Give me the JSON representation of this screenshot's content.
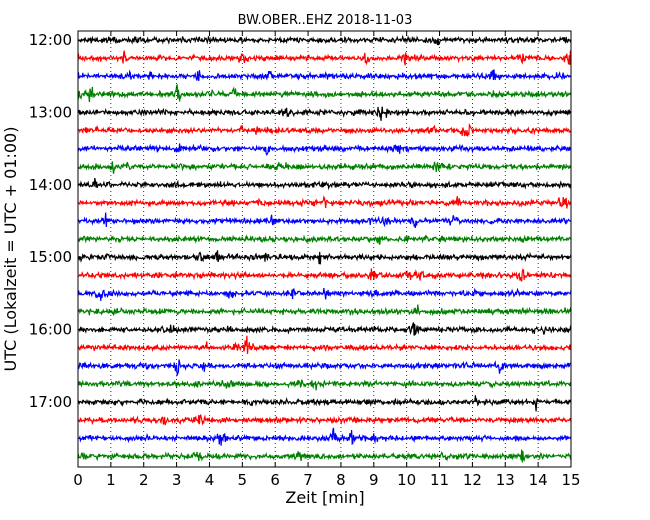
{
  "chart_data": {
    "type": "line",
    "title": "BW.OBER..EHZ 2018-11-03",
    "xlabel": "Zeit  [min]",
    "ylabel": "UTC (Lokalzeit = UTC + 01:00)",
    "xlim": [
      0,
      15
    ],
    "x_ticks": [
      "0",
      "1",
      "2",
      "3",
      "4",
      "5",
      "6",
      "7",
      "8",
      "9",
      "10",
      "11",
      "12",
      "13",
      "14",
      "15"
    ],
    "y_ticks": [
      "12:00",
      "13:00",
      "14:00",
      "15:00",
      "16:00",
      "17:00"
    ],
    "trace_interval_minutes": 15,
    "start_time": "12:00",
    "trace_count": 24,
    "trace_colors": [
      "#000000",
      "#ff0000",
      "#0000ff",
      "#008000"
    ],
    "grid": "dotted vertical at each minute"
  }
}
